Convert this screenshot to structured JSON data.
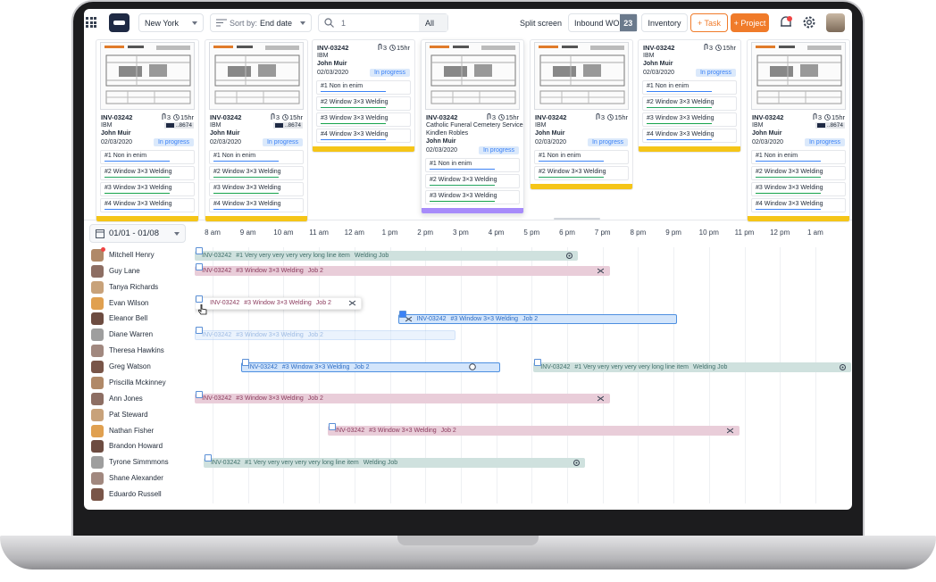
{
  "toolbar": {
    "location": "New York",
    "sort_label": "Sort by:",
    "sort_value": "End date",
    "search": "1",
    "filter": "All",
    "split_screen": "Split screen",
    "inbound": "Inbound WO",
    "inbound_count": "23",
    "inventory": "Inventory",
    "add_task": "+ Task",
    "add_project": "+ Project"
  },
  "cards": [
    {
      "id": "INV-03242",
      "attachments": "3",
      "duration": "15hr",
      "client": "IBM",
      "card_number": "..8674",
      "contact": "John Muir",
      "date": "02/03/2020",
      "status": "In progress",
      "image": true,
      "accent": "#f5c518",
      "lines": [
        "#1 Non in enim",
        "#2 Window 3×3 Welding",
        "#3 Window 3×3 Welding",
        "#4 Window 3×3 Welding"
      ]
    },
    {
      "id": "INV-03242",
      "attachments": "3",
      "duration": "15hr",
      "client": "IBM",
      "card_number": "..8674",
      "contact": "John Muir",
      "date": "02/03/2020",
      "status": "In progress",
      "image": true,
      "accent": "#f5c518",
      "lines": [
        "#1 Non in enim",
        "#2 Window 3×3 Welding",
        "#3 Window 3×3 Welding",
        "#4 Window 3×3 Welding"
      ]
    },
    {
      "id": "INV-03242",
      "attachments": "3",
      "duration": "15hr",
      "client": "IBM",
      "contact": "John Muir",
      "date": "02/03/2020",
      "status": "In progress",
      "image": false,
      "accent": "#f5c518",
      "lines": [
        "#1 Non in enim",
        "#2 Window 3×3 Welding",
        "#3 Window 3×3 Welding",
        "#4 Window 3×3 Welding"
      ]
    },
    {
      "id": "INV-03242",
      "attachments": "3",
      "duration": "15hr",
      "client": "Catholic Funeral Cemetery Services",
      "client_contact": "Kindlen Robles",
      "contact": "John Muir",
      "date": "02/03/2020",
      "status": "In progress",
      "image": true,
      "accent": "#a78bfa",
      "lines": [
        "#1 Non in enim",
        "#2 Window 3×3 Welding",
        "#3 Window 3×3 Welding"
      ]
    },
    {
      "id": "INV-03242",
      "attachments": "3",
      "duration": "15hr",
      "client": "IBM",
      "contact": "John Muir",
      "date": "02/03/2020",
      "status": "In progress",
      "image": true,
      "accent": "#f5c518",
      "lines": [
        "#1 Non in enim",
        "#2 Window 3×3 Welding"
      ]
    },
    {
      "id": "INV-03242",
      "attachments": "3",
      "duration": "15hr",
      "client": "IBM",
      "contact": "John Muir",
      "date": "02/03/2020",
      "status": "In progress",
      "image": false,
      "accent": "#f5c518",
      "lines": [
        "#1 Non in enim",
        "#2 Window 3×3 Welding",
        "#3 Window 3×3 Welding",
        "#4 Window 3×3 Welding"
      ]
    },
    {
      "id": "INV-03242",
      "attachments": "3",
      "duration": "15hr",
      "client": "IBM",
      "card_number": "..8674",
      "contact": "John Muir",
      "date": "02/03/2020",
      "status": "In progress",
      "image": true,
      "accent": "#f5c518",
      "lines": [
        "#1 Non in enim",
        "#2 Window 3×3 Welding",
        "#3 Window 3×3 Welding",
        "#4 Window 3×3 Welding"
      ]
    }
  ],
  "timeline": {
    "date_range": "01/01 - 01/08",
    "hours": [
      {
        "value": 8,
        "label": "8 am"
      },
      {
        "value": 9,
        "label": "9 am"
      },
      {
        "value": 10,
        "label": "10 am"
      },
      {
        "value": 11,
        "label": "11 am"
      },
      {
        "value": 12,
        "label": "12 am"
      },
      {
        "value": 13,
        "label": "1 pm"
      },
      {
        "value": 14,
        "label": "2 pm"
      },
      {
        "value": 15,
        "label": "3 pm"
      },
      {
        "value": 16,
        "label": "4 pm"
      },
      {
        "value": 17,
        "label": "5 pm"
      },
      {
        "value": 18,
        "label": "6 pm"
      },
      {
        "value": 19,
        "label": "7 pm"
      },
      {
        "value": 20,
        "label": "8 pm"
      },
      {
        "value": 21,
        "label": "9 pm"
      },
      {
        "value": 22,
        "label": "10 pm"
      },
      {
        "value": 23,
        "label": "11 pm"
      },
      {
        "value": 24,
        "label": "12 pm"
      },
      {
        "value": 25,
        "label": "1 am"
      }
    ],
    "people": [
      {
        "name": "Mitchell Henry",
        "bars": [
          {
            "id": "INV-03242",
            "item": "#1 Very very very very very long line item",
            "job": "Welding Job",
            "start": 7.5,
            "end": 18.3,
            "color": "#cfe1de",
            "text_color": "#3f6f69",
            "state": "normal"
          }
        ]
      },
      {
        "name": "Guy Lane",
        "bars": [
          {
            "id": "INV-03242",
            "item": "#3 Window 3×3 Welding",
            "job": "Job 2",
            "start": 7.5,
            "end": 19.2,
            "color": "#e9cdd9",
            "text_color": "#8b3b5d",
            "state": "normal"
          }
        ]
      },
      {
        "name": "Tanya Richards",
        "bars": []
      },
      {
        "name": "Evan Wilson",
        "bars": [
          {
            "id": "INV-03242",
            "item": "#3 Window 3×3 Welding",
            "job": "Job 2",
            "start": 7.5,
            "end": 12.2,
            "color": "#ffffff",
            "text_color": "#8b3b5d",
            "state": "dragging"
          }
        ]
      },
      {
        "name": "Eleanor Bell",
        "bars": [
          {
            "id": "INV-03242",
            "item": "#3 Window 3×3 Welding",
            "job": "Job 2",
            "start": 13.25,
            "end": 21.1,
            "color": "#d3e5fb",
            "text_color": "#2a6bc4",
            "state": "checked"
          }
        ]
      },
      {
        "name": "Diane Warren",
        "bars": [
          {
            "id": "INV-03242",
            "item": "#3 Window 3×3 Welding",
            "job": "Job 2",
            "start": 7.5,
            "end": 14.85,
            "color": "#d3e5fb",
            "text_color": "#2a6bc4",
            "state": "ghost"
          }
        ]
      },
      {
        "name": "Theresa Hawkins",
        "bars": []
      },
      {
        "name": "Greg Watson",
        "bars": [
          {
            "id": "INV-03242",
            "item": "#3 Window 3×3 Welding",
            "job": "Job 2",
            "start": 8.8,
            "end": 16.1,
            "color": "#d3e5fb",
            "text_color": "#2a6bc4",
            "state": "selected"
          },
          {
            "id": "INV-03242",
            "item": "#1 Very very very very very long line item",
            "job": "Welding Job",
            "start": 17.05,
            "end": 26,
            "color": "#cfe1de",
            "text_color": "#3f6f69",
            "state": "normal"
          }
        ]
      },
      {
        "name": "Priscilla Mckinney",
        "bars": []
      },
      {
        "name": "Ann Jones",
        "bars": [
          {
            "id": "INV-03242",
            "item": "#3 Window 3×3 Welding",
            "job": "Job 2",
            "start": 7.5,
            "end": 19.2,
            "color": "#e9cdd9",
            "text_color": "#8b3b5d",
            "state": "normal"
          }
        ]
      },
      {
        "name": "Pat Steward",
        "bars": []
      },
      {
        "name": "Nathan Fisher",
        "bars": [
          {
            "id": "INV-03242",
            "item": "#3 Window 3×3 Welding",
            "job": "Job 2",
            "start": 11.25,
            "end": 22.85,
            "color": "#e9cdd9",
            "text_color": "#8b3b5d",
            "state": "normal"
          }
        ]
      },
      {
        "name": "Brandon Howard",
        "bars": []
      },
      {
        "name": "Tyrone Simmmons",
        "bars": [
          {
            "id": "INV-03242",
            "item": "#1 Very very very very very long line item",
            "job": "Welding Job",
            "start": 7.75,
            "end": 18.5,
            "color": "#cfe1de",
            "text_color": "#3f6f69",
            "state": "normal"
          }
        ]
      },
      {
        "name": "Shane Alexander",
        "bars": []
      },
      {
        "name": "Eduardo Russell",
        "bars": []
      }
    ]
  }
}
